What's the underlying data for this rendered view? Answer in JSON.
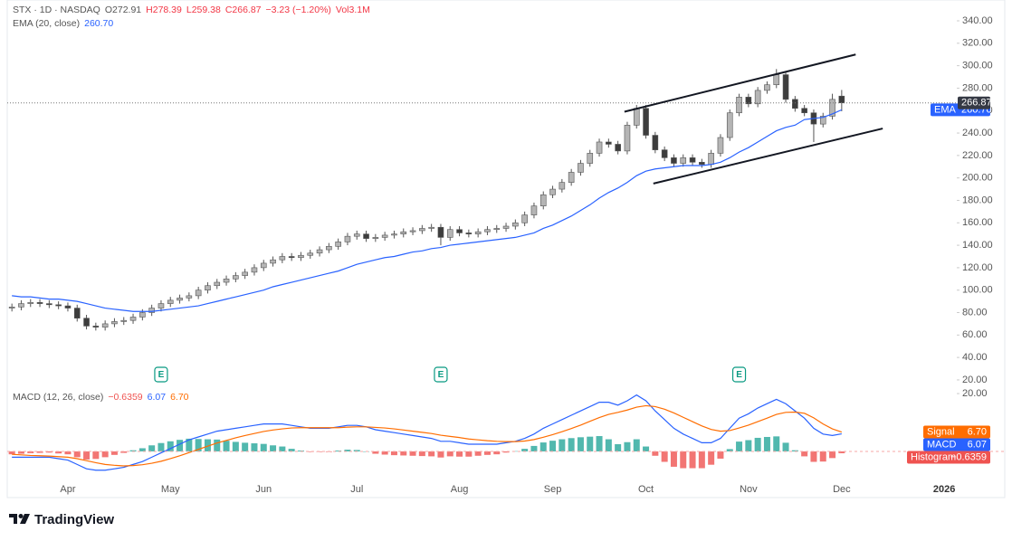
{
  "chart_data": [
    {
      "type": "candlestick",
      "title": "STX · 1D · NASDAQ",
      "ohlc_legend": [
        "O272.91",
        "H278.39",
        "L259.38",
        "C266.87",
        "−3.23 (−1.20%)",
        "Vol3.1M"
      ],
      "up_color": "#b5b5b5",
      "down_color": "#3d3d3d",
      "wick_color": "#555555",
      "categories": [
        null,
        null,
        null,
        null,
        null,
        null,
        "Apr",
        null,
        null,
        null,
        null,
        null,
        null,
        null,
        null,
        null,
        null,
        "May",
        null,
        null,
        null,
        null,
        null,
        null,
        null,
        null,
        null,
        "Jun",
        null,
        null,
        null,
        null,
        null,
        null,
        null,
        null,
        null,
        "Jul",
        null,
        null,
        null,
        null,
        null,
        null,
        null,
        null,
        null,
        null,
        "Aug",
        null,
        null,
        null,
        null,
        null,
        null,
        null,
        null,
        null,
        "Sep",
        null,
        null,
        null,
        null,
        null,
        null,
        null,
        null,
        null,
        "Oct",
        null,
        null,
        null,
        null,
        null,
        null,
        null,
        null,
        null,
        null,
        "Nov",
        null,
        null,
        null,
        null,
        null,
        null,
        null,
        null,
        null,
        "Dec",
        null,
        null,
        null,
        null,
        null,
        null,
        null,
        null,
        null,
        null,
        "2026"
      ],
      "open": [
        84,
        85,
        88,
        89,
        88,
        87,
        86,
        84,
        75,
        68,
        67,
        70,
        72,
        73,
        76,
        80,
        84,
        88,
        91,
        93,
        95,
        100,
        104,
        107,
        110,
        113,
        116,
        120,
        124,
        127,
        130,
        129,
        131,
        133,
        136,
        139,
        143,
        148,
        150,
        146,
        147,
        149,
        150,
        152,
        153,
        155,
        156,
        147,
        154,
        151,
        150,
        152,
        154,
        155,
        157,
        160,
        167,
        175,
        185,
        190,
        196,
        205,
        213,
        222,
        232,
        230,
        224,
        247,
        262,
        238,
        225,
        218,
        213,
        218,
        214,
        212,
        222,
        236,
        258,
        272,
        266,
        278,
        283,
        292,
        270,
        262,
        258,
        248,
        255,
        272.91,
        null,
        null,
        null,
        null,
        null,
        null,
        null,
        null,
        null,
        null,
        null
      ],
      "high": [
        88,
        91,
        92,
        92,
        91,
        90,
        89,
        87,
        78,
        71,
        73,
        75,
        76,
        79,
        83,
        87,
        91,
        94,
        96,
        98,
        103,
        107,
        110,
        113,
        116,
        119,
        123,
        127,
        130,
        133,
        133,
        134,
        136,
        139,
        142,
        146,
        151,
        153,
        153,
        150,
        152,
        153,
        155,
        156,
        158,
        159,
        159,
        157,
        157,
        154,
        155,
        157,
        158,
        160,
        163,
        170,
        178,
        188,
        193,
        199,
        208,
        216,
        225,
        235,
        235,
        233,
        250,
        265,
        265,
        241,
        228,
        221,
        221,
        221,
        217,
        225,
        239,
        261,
        275,
        275,
        281,
        286,
        297,
        295,
        273,
        265,
        261,
        258,
        275,
        278.39,
        null,
        null,
        null,
        null,
        null,
        null,
        null,
        null,
        null,
        null,
        null
      ],
      "low": [
        81,
        82,
        85,
        85,
        84,
        83,
        81,
        72,
        65,
        64,
        64,
        67,
        69,
        70,
        73,
        77,
        81,
        85,
        88,
        90,
        92,
        97,
        101,
        104,
        107,
        110,
        113,
        117,
        121,
        124,
        126,
        126,
        128,
        130,
        133,
        136,
        140,
        145,
        143,
        143,
        144,
        146,
        147,
        149,
        150,
        152,
        140,
        144,
        148,
        147,
        147,
        149,
        151,
        152,
        154,
        157,
        164,
        172,
        182,
        187,
        193,
        202,
        210,
        219,
        227,
        221,
        221,
        244,
        235,
        222,
        215,
        210,
        210,
        211,
        209,
        209,
        219,
        233,
        255,
        263,
        263,
        275,
        280,
        267,
        259,
        255,
        232,
        245,
        252,
        259.38,
        null,
        null,
        null,
        null,
        null,
        null,
        null,
        null,
        null,
        null,
        null
      ],
      "close": [
        85,
        88,
        89,
        88,
        87,
        86,
        84,
        75,
        68,
        67,
        70,
        72,
        73,
        76,
        80,
        84,
        88,
        91,
        93,
        95,
        100,
        104,
        107,
        110,
        113,
        116,
        120,
        124,
        127,
        130,
        129,
        131,
        133,
        136,
        139,
        143,
        148,
        150,
        146,
        147,
        149,
        150,
        152,
        153,
        155,
        156,
        147,
        154,
        151,
        150,
        152,
        154,
        155,
        157,
        160,
        167,
        175,
        185,
        190,
        196,
        205,
        213,
        222,
        232,
        230,
        224,
        247,
        262,
        238,
        225,
        218,
        213,
        218,
        214,
        212,
        222,
        236,
        258,
        272,
        266,
        278,
        283,
        292,
        270,
        262,
        258,
        248,
        255,
        270,
        266.87,
        null,
        null,
        null,
        null,
        null,
        null,
        null,
        null,
        null,
        null,
        null
      ],
      "series": [
        {
          "name": "EMA (20, close)",
          "tag": "EMA",
          "color": "#2962ff",
          "value_label": "260.70",
          "values": [
            95,
            94,
            94,
            93,
            92,
            92,
            91,
            90,
            88,
            86,
            84,
            83,
            82,
            81,
            81,
            81,
            82,
            83,
            84,
            85,
            86,
            88,
            90,
            92,
            94,
            96,
            98,
            100,
            103,
            105,
            107,
            109,
            111,
            113,
            115,
            117,
            120,
            123,
            125,
            127,
            129,
            130,
            132,
            134,
            135,
            137,
            138,
            140,
            141,
            142,
            143,
            144,
            145,
            146,
            147,
            149,
            151,
            155,
            158,
            162,
            166,
            171,
            176,
            182,
            187,
            191,
            196,
            202,
            206,
            208,
            209,
            210,
            211,
            211,
            211,
            212,
            214,
            218,
            223,
            227,
            232,
            237,
            242,
            245,
            247,
            252,
            253,
            254,
            257,
            260.7,
            null,
            null,
            null,
            null,
            null,
            null,
            null,
            null,
            null,
            null,
            null
          ]
        }
      ],
      "trendlines": [
        {
          "x": [
            65.7,
            90.5
          ],
          "y": [
            259,
            310
          ]
        },
        {
          "x": [
            68.8,
            93.4
          ],
          "y": [
            195,
            244
          ]
        }
      ],
      "events": [
        {
          "label": "E",
          "x": 16
        },
        {
          "label": "E",
          "x": 46
        },
        {
          "label": "E",
          "x": 78
        }
      ],
      "ylim": [
        13.5,
        352.1
      ],
      "yticks": [
        {
          "value": 20,
          "label": "20.00"
        },
        {
          "value": 40,
          "label": "40.00"
        },
        {
          "value": 60,
          "label": "60.00"
        },
        {
          "value": 80,
          "label": "80.00"
        },
        {
          "value": 100,
          "label": "100.00"
        },
        {
          "value": 120,
          "label": "120.00"
        },
        {
          "value": 140,
          "label": "140.00"
        },
        {
          "value": 160,
          "label": "160.00"
        },
        {
          "value": 180,
          "label": "180.00"
        },
        {
          "value": 200,
          "label": "200.00"
        },
        {
          "value": 220,
          "label": "220.00"
        },
        {
          "value": 240,
          "label": "240.00"
        },
        {
          "value": 260,
          "label": "260.00"
        },
        {
          "value": 280,
          "label": "280.00"
        },
        {
          "value": 300,
          "label": "300.00"
        },
        {
          "value": 320,
          "label": "320.00"
        },
        {
          "value": 340,
          "label": "340.00"
        }
      ]
    },
    {
      "type": "macd",
      "title": "MACD (12, 26, close)",
      "ylim": [
        -9.7,
        22.2
      ],
      "yticks": [
        {
          "value": 20,
          "label": "20.00"
        }
      ],
      "series": [
        {
          "name": "Histogram",
          "type": "bar",
          "up_color": "#26a69a",
          "down_color": "#ef5350",
          "value_label": "−0.6359",
          "values": [
            -1,
            -0.8,
            -0.6,
            -0.5,
            -0.4,
            -0.7,
            -1,
            -2,
            -2.8,
            -2.6,
            -2,
            -1.2,
            -0.5,
            0.4,
            1.1,
            2.1,
            2.9,
            3.5,
            4,
            4.4,
            4.3,
            4.2,
            4.1,
            3.7,
            3.3,
            3,
            2.8,
            2.6,
            2.1,
            1.7,
            0.9,
            0.3,
            -0.2,
            -0.2,
            -0.2,
            0.3,
            0.6,
            0.5,
            0,
            -0.8,
            -1.1,
            -1.3,
            -1.4,
            -1.5,
            -1.6,
            -1.7,
            -2.1,
            -1.7,
            -1.8,
            -1.8,
            -1.5,
            -1.2,
            -1,
            -0.4,
            0.1,
            0.9,
            1.9,
            3.1,
            3.7,
            4.2,
            4.6,
            4.9,
            5.1,
            5.3,
            4.2,
            2.5,
            3.2,
            4.2,
            1.7,
            -1.5,
            -3.6,
            -5.3,
            -5.8,
            -5.8,
            -5.8,
            -4.6,
            -2.5,
            0.8,
            3.4,
            3.9,
            4.7,
            5,
            5.2,
            3,
            0.4,
            -1.7,
            -3.6,
            -3.5,
            -2.3,
            -0.6359,
            null,
            null,
            null,
            null,
            null,
            null,
            null,
            null,
            null,
            null,
            null
          ]
        },
        {
          "name": "MACD",
          "type": "line",
          "color": "#2962ff",
          "values": [
            -2,
            -2,
            -2,
            -2,
            -2,
            -2.5,
            -3,
            -4.5,
            -6,
            -6.5,
            -6.5,
            -6,
            -5.5,
            -4.5,
            -3.5,
            -2,
            -0.5,
            1,
            2.5,
            4,
            5,
            6,
            7,
            7.5,
            8,
            8.5,
            9,
            9.5,
            9.5,
            9.5,
            9,
            8.5,
            8,
            8,
            8,
            8.5,
            9,
            9,
            8.5,
            7.5,
            7,
            6.5,
            6,
            5.5,
            5,
            4.5,
            3.5,
            3.5,
            3,
            2.5,
            2.5,
            2.5,
            2.5,
            3,
            3.5,
            4.5,
            6,
            8,
            9.5,
            11,
            12.5,
            14,
            15.5,
            17,
            17,
            16,
            17.5,
            19.5,
            17.5,
            14,
            11,
            8,
            6,
            4.5,
            3,
            3,
            4.5,
            8,
            11.5,
            13,
            15,
            16.5,
            18,
            16.5,
            14,
            11.5,
            8,
            6,
            5.5,
            6.07,
            null,
            null,
            null,
            null,
            null,
            null,
            null,
            null,
            null,
            null,
            null
          ]
        },
        {
          "name": "Signal",
          "type": "line",
          "color": "#ff6d00",
          "value_label": "6.70",
          "values": [
            -1,
            -1.2,
            -1.4,
            -1.5,
            -1.6,
            -1.8,
            -2,
            -2.5,
            -3.2,
            -3.9,
            -4.5,
            -4.8,
            -5,
            -4.9,
            -4.6,
            -4.1,
            -3.4,
            -2.5,
            -1.5,
            -0.4,
            0.7,
            1.8,
            2.9,
            3.8,
            4.7,
            5.5,
            6.2,
            6.9,
            7.4,
            7.8,
            8.1,
            8.2,
            8.2,
            8.2,
            8.2,
            8.2,
            8.4,
            8.5,
            8.5,
            8.3,
            8.1,
            7.8,
            7.4,
            7,
            6.6,
            6.2,
            5.6,
            5.2,
            4.8,
            4.3,
            4,
            3.7,
            3.5,
            3.4,
            3.4,
            3.6,
            4.1,
            4.9,
            5.8,
            6.8,
            7.9,
            9.1,
            10.4,
            11.7,
            12.8,
            13.5,
            14.3,
            15.3,
            15.8,
            15.5,
            14.6,
            13.3,
            11.8,
            10.3,
            8.8,
            7.6,
            7,
            7.2,
            8.1,
            9.1,
            10.3,
            11.5,
            12.8,
            13.5,
            13.6,
            13.2,
            11.6,
            9.5,
            7.8,
            6.7,
            null,
            null,
            null,
            null,
            null,
            null,
            null,
            null,
            null,
            null,
            null
          ]
        }
      ]
    }
  ],
  "footer": {
    "brand": "TradingView"
  }
}
